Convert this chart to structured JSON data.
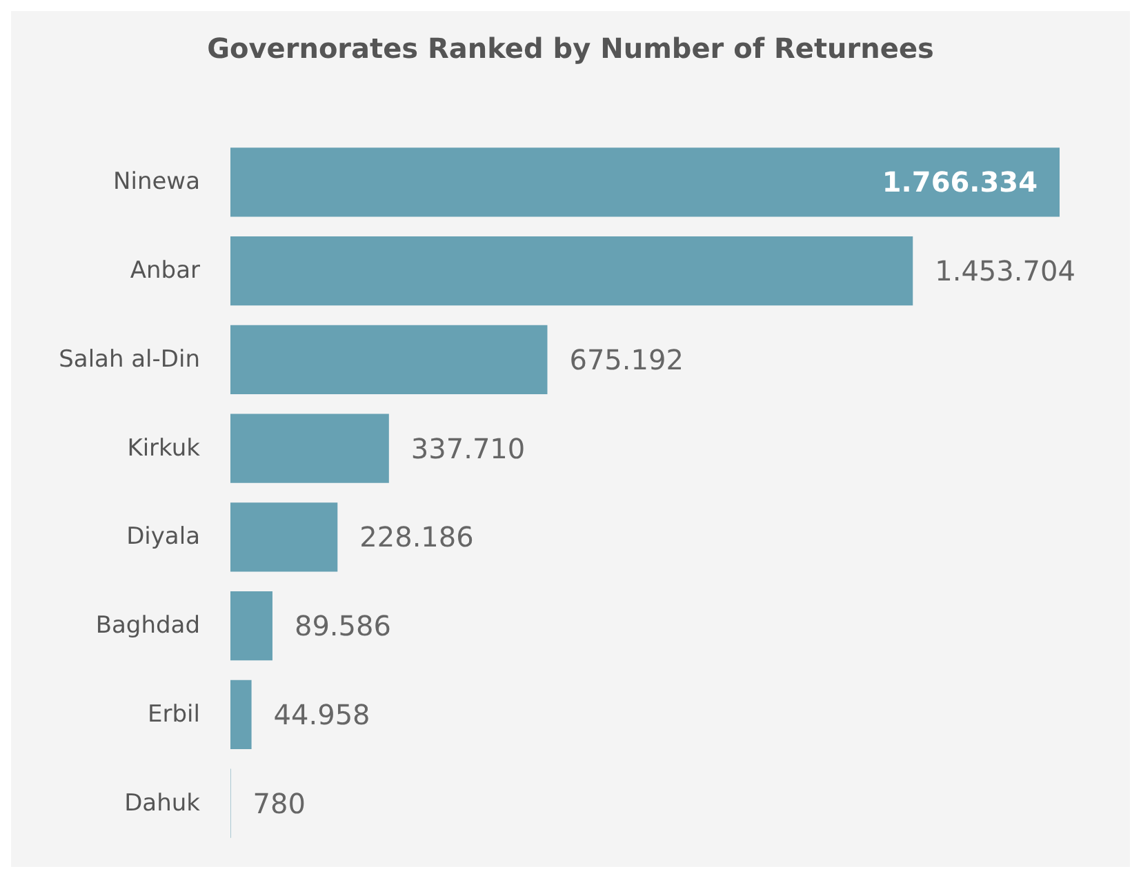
{
  "chart_data": {
    "type": "bar",
    "orientation": "horizontal",
    "title": "Governorates Ranked by Number of Returnees",
    "categories": [
      "Ninewa",
      "Anbar",
      "Salah al-Din",
      "Kirkuk",
      "Diyala",
      "Baghdad",
      "Erbil",
      "Dahuk"
    ],
    "values": [
      1766334,
      1453704,
      675192,
      337710,
      228186,
      89586,
      44958,
      780
    ],
    "value_labels": [
      "1.766.334",
      "1.453.704",
      "675.192",
      "337.710",
      "228.186",
      "89.586",
      "44.958",
      "780"
    ],
    "color": "#67a1b3"
  }
}
